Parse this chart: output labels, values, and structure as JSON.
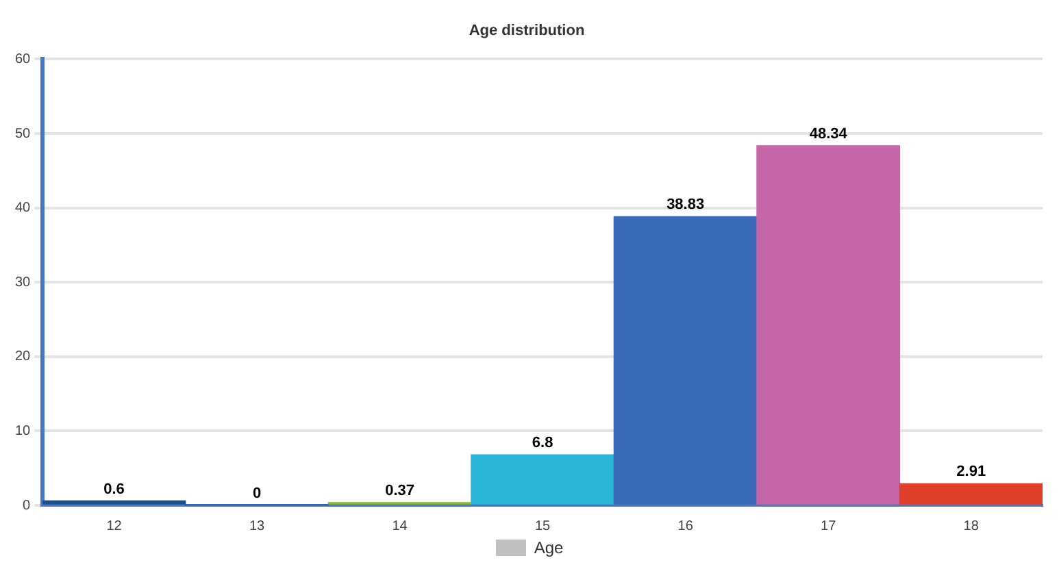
{
  "chart_data": {
    "type": "bar",
    "title": "Age distribution",
    "categories": [
      "12",
      "13",
      "14",
      "15",
      "16",
      "17",
      "18"
    ],
    "series": [
      {
        "name": "Age",
        "color": "#c0c0c0",
        "colors": [
          "#1a4f8a",
          "#0d233a",
          "#8bbc21",
          "#29b6d8",
          "#3a6bb8",
          "#c566a8",
          "#e0402a"
        ],
        "values": [
          0.6,
          0,
          0.37,
          6.8,
          38.83,
          48.34,
          2.91
        ]
      }
    ],
    "ylim": [
      0,
      60
    ],
    "yticks": [
      0,
      10,
      20,
      30,
      40,
      50,
      60
    ],
    "grid": "y",
    "legend": "bottom",
    "data_labels": true
  }
}
